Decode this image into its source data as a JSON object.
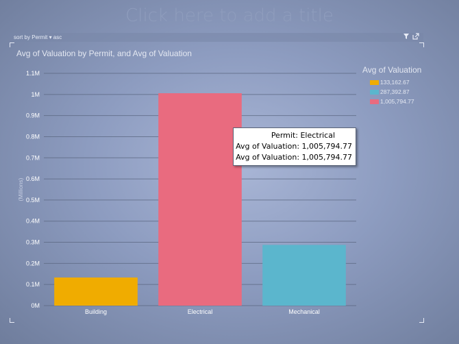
{
  "page": {
    "title_placeholder": "Click here to add a title"
  },
  "toolbar": {
    "sort_text": "sort by  Permit  ▾  asc",
    "filter_icon": "filter-icon",
    "popout_icon": "popout-icon"
  },
  "chart_data": {
    "type": "bar",
    "title": "Avg of Valuation by Permit, and Avg of Valuation",
    "ylabel": "(Millions)",
    "xlabel": "",
    "categories": [
      "Building",
      "Electrical",
      "Mechanical"
    ],
    "values": [
      133162.67,
      1005794.77,
      287392.87
    ],
    "colors": [
      "#f0ac00",
      "#e96b7f",
      "#5bb6cd"
    ],
    "ylim": [
      0,
      1100000
    ],
    "yticks": [
      0,
      100000,
      200000,
      300000,
      400000,
      500000,
      600000,
      700000,
      800000,
      900000,
      1000000,
      1100000
    ],
    "ytick_labels": [
      "0M",
      "0.1M",
      "0.2M",
      "0.3M",
      "0.4M",
      "0.5M",
      "0.6M",
      "0.7M",
      "0.8M",
      "0.9M",
      "1M",
      "1.1M"
    ],
    "grid": true,
    "legend": {
      "title": "Avg of Valuation",
      "position": "right",
      "items": [
        {
          "label": "133,162.67",
          "color": "#f0ac00"
        },
        {
          "label": "287,392.87",
          "color": "#5bb6cd"
        },
        {
          "label": "1,005,794.77",
          "color": "#e96b7f"
        }
      ]
    }
  },
  "tooltip": {
    "line1": "Permit: Electrical",
    "line2": "Avg of Valuation: 1,005,794.77",
    "line3": "Avg of Valuation: 1,005,794.77"
  }
}
